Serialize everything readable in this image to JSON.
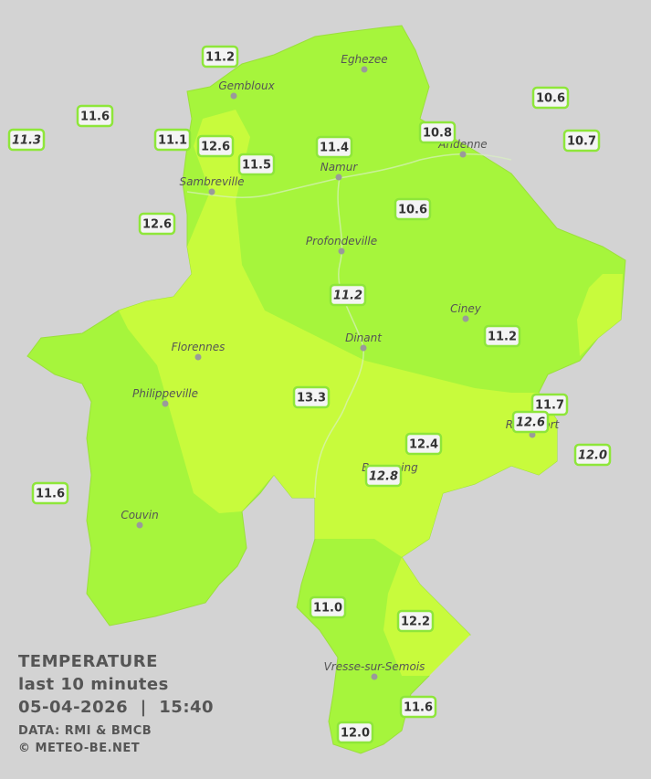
{
  "map": {
    "cities": [
      {
        "name": "Eghezee"
      },
      {
        "name": "Gembloux"
      },
      {
        "name": "Andenne"
      },
      {
        "name": "Namur"
      },
      {
        "name": "Sambreville"
      },
      {
        "name": "Profondeville"
      },
      {
        "name": "Ciney"
      },
      {
        "name": "Dinant"
      },
      {
        "name": "Florennes"
      },
      {
        "name": "Philippeville"
      },
      {
        "name": "Rochefort"
      },
      {
        "name": "Beauraing"
      },
      {
        "name": "Couvin"
      },
      {
        "name": "Vresse-sur-Semois"
      }
    ],
    "stations": [
      {
        "label": "11.2",
        "italic": false
      },
      {
        "label": "11.6",
        "italic": false
      },
      {
        "label": "11.3",
        "italic": true
      },
      {
        "label": "11.1",
        "italic": false
      },
      {
        "label": "12.6",
        "italic": false
      },
      {
        "label": "11.5",
        "italic": false
      },
      {
        "label": "11.4",
        "italic": false
      },
      {
        "label": "10.8",
        "italic": false
      },
      {
        "label": "10.6",
        "italic": false
      },
      {
        "label": "10.7",
        "italic": false
      },
      {
        "label": "12.6",
        "italic": false
      },
      {
        "label": "10.6",
        "italic": false
      },
      {
        "label": "11.2",
        "italic": true
      },
      {
        "label": "11.2",
        "italic": false
      },
      {
        "label": "13.3",
        "italic": false
      },
      {
        "label": "11.7",
        "italic": false
      },
      {
        "label": "12.6",
        "italic": true
      },
      {
        "label": "12.4",
        "italic": false
      },
      {
        "label": "12.0",
        "italic": true
      },
      {
        "label": "12.8",
        "italic": true
      },
      {
        "label": "11.6",
        "italic": false
      },
      {
        "label": "11.0",
        "italic": false
      },
      {
        "label": "12.2",
        "italic": false
      },
      {
        "label": "11.6",
        "italic": false
      },
      {
        "label": "12.0",
        "italic": false
      }
    ],
    "legend": {
      "title": "TEMPERATURE",
      "subtitle": "last 10 minutes",
      "datetime": "05-04-2026  |  15:40",
      "source": "DATA: RMI & BMCB",
      "copyright": "© METEO-BE.NET"
    }
  }
}
